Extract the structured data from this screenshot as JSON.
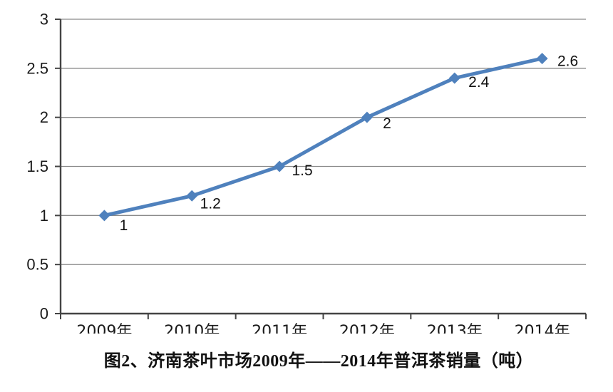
{
  "chart_data": {
    "type": "line",
    "title": "图2、济南茶叶市场2009年——2014年普洱茶销量（吨）",
    "categories": [
      "2009年",
      "2010年",
      "2011年",
      "2012年",
      "2013年",
      "2014年"
    ],
    "values": [
      1,
      1.2,
      1.5,
      2,
      2.4,
      2.6
    ],
    "data_labels": [
      "1",
      "1.2",
      "1.5",
      "2",
      "2.4",
      "2.6"
    ],
    "xlabel": "",
    "ylabel": "",
    "ylim": [
      0,
      3
    ],
    "y_ticks": [
      0,
      0.5,
      1,
      1.5,
      2,
      2.5,
      3
    ],
    "y_tick_labels": [
      "0",
      "0.5",
      "1",
      "1.5",
      "2",
      "2.5",
      "3"
    ],
    "grid": "horizontal",
    "legend": "none",
    "marker": "diamond",
    "colors": {
      "line": "#4F81BD",
      "gridline": "#8A8A8A",
      "axis": "#444444",
      "tick_text": "#1A1A1A",
      "label_text": "#111111",
      "background": "#FFFFFF"
    }
  }
}
